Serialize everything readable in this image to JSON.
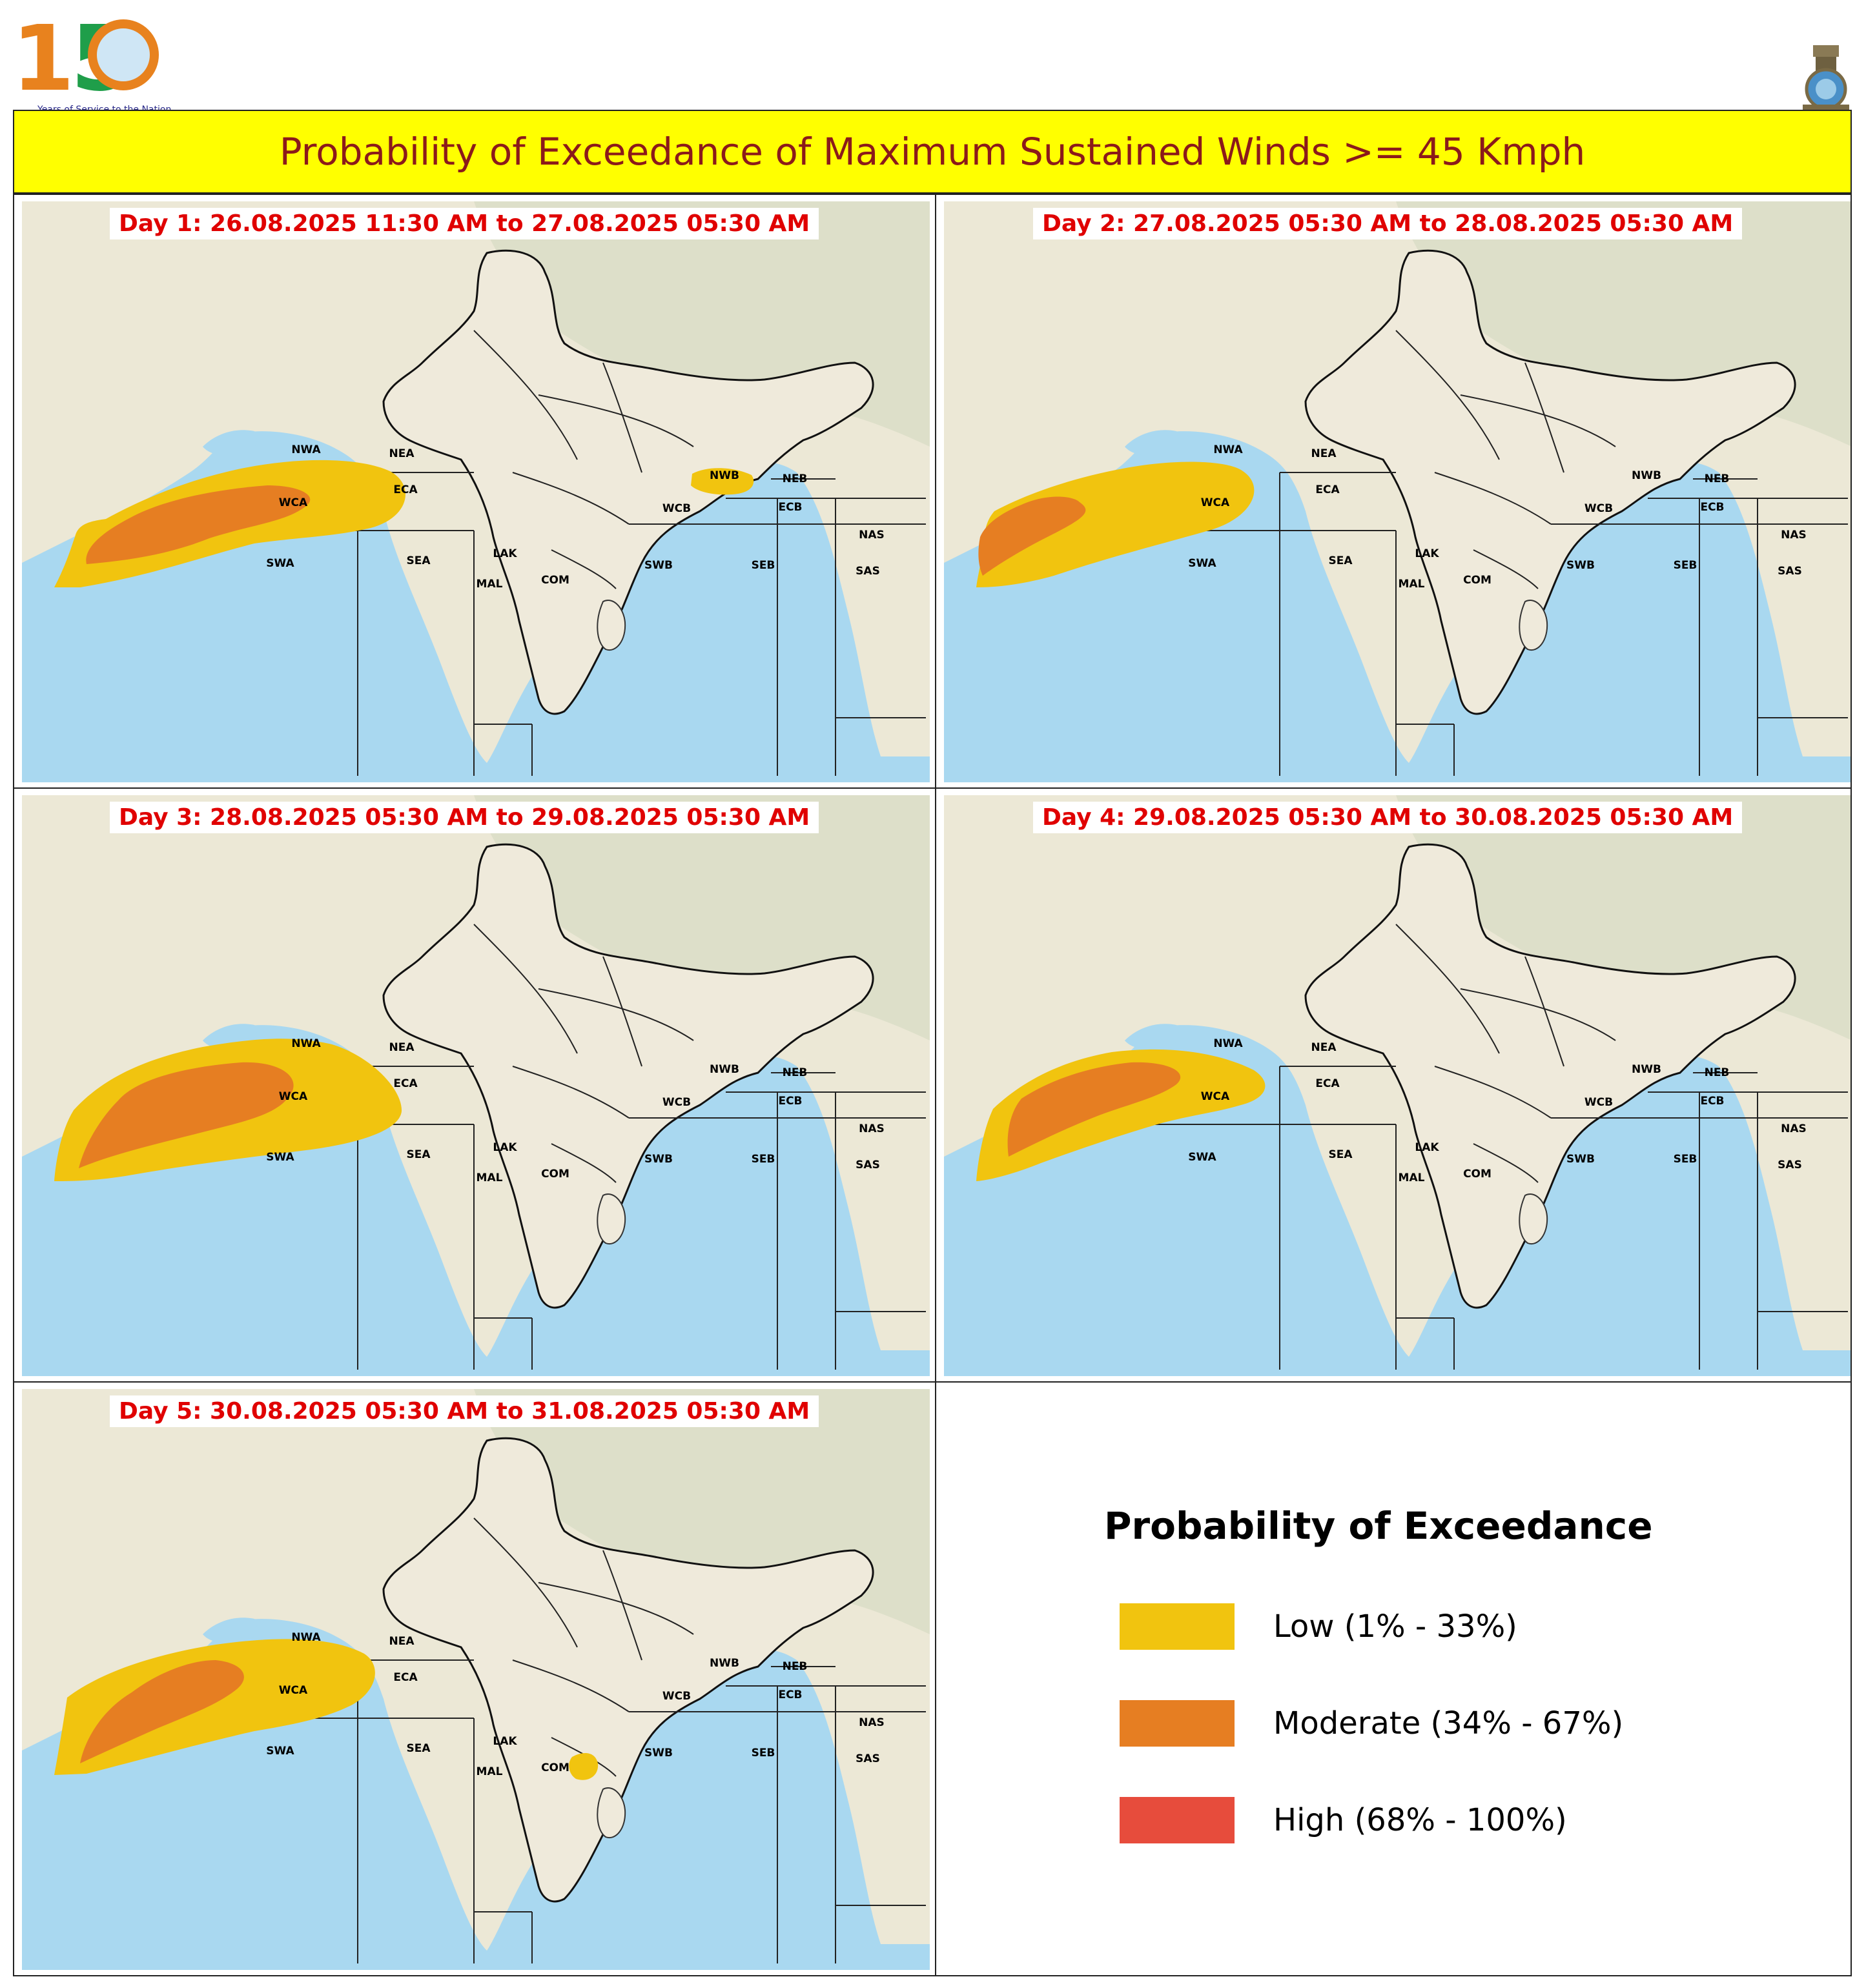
{
  "header": {
    "logo_150": {
      "digits_1": "1",
      "digits_5": "5",
      "tagline": "Years of Service to the Nation"
    },
    "title": "Probability of Exceedance of Maximum Sustained Winds >= 45 Kmph"
  },
  "colors": {
    "low": "#f1c40f",
    "moderate": "#e67e22",
    "high": "#e74c3c",
    "sea": "#a9d8f0",
    "land": "#ece8d6",
    "title_bg": "#ffff00",
    "title_text": "#8b1a1a",
    "day_text": "#e00000"
  },
  "regions": [
    "NWA",
    "NEA",
    "ECA",
    "WCA",
    "SWA",
    "SEA",
    "LAK",
    "MAL",
    "COM",
    "NWB",
    "NEB",
    "WCB",
    "ECB",
    "SWB",
    "SEB",
    "NAS",
    "SAS"
  ],
  "panels": [
    {
      "day_label": "Day 1: 26.08.2025 11:30 AM to 27.08.2025 05:30 AM"
    },
    {
      "day_label": "Day 2: 27.08.2025 05:30 AM to 28.08.2025 05:30 AM"
    },
    {
      "day_label": "Day 3: 28.08.2025 05:30 AM to 29.08.2025 05:30 AM"
    },
    {
      "day_label": "Day 4: 29.08.2025 05:30 AM to 30.08.2025 05:30 AM"
    },
    {
      "day_label": "Day 5: 30.08.2025 05:30 AM to 31.08.2025 05:30 AM"
    }
  ],
  "legend": {
    "title": "Probability of Exceedance",
    "items": [
      {
        "label": "Low (1% - 33%)",
        "color": "#f1c40f"
      },
      {
        "label": "Moderate (34% - 67%)",
        "color": "#e67e22"
      },
      {
        "label": "High (68% - 100%)",
        "color": "#e74c3c"
      }
    ]
  }
}
